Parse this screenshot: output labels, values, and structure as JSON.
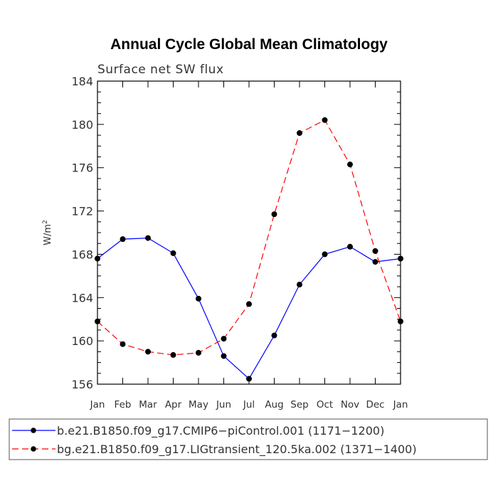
{
  "chart_data": {
    "type": "line",
    "title": "Annual Cycle Global Mean Climatology",
    "subtitle": "Surface net SW flux",
    "xlabel": "",
    "ylabel": "W/m",
    "ylabel_sup": "2",
    "categories": [
      "Jan",
      "Feb",
      "Mar",
      "Apr",
      "May",
      "Jun",
      "Jul",
      "Aug",
      "Sep",
      "Oct",
      "Nov",
      "Dec",
      "Jan"
    ],
    "ylim": [
      156,
      184
    ],
    "yticks": [
      156,
      160,
      164,
      168,
      172,
      176,
      180,
      184
    ],
    "grid": false,
    "legend_position": "bottom",
    "series": [
      {
        "name": "b.e21.B1850.f09_g17.CMIP6−piControl.001 (1171−1200)",
        "color": "#0000ff",
        "style": "solid",
        "values": [
          167.6,
          169.4,
          169.5,
          168.1,
          163.9,
          158.6,
          156.5,
          160.5,
          165.2,
          168.0,
          168.7,
          167.3,
          167.6
        ]
      },
      {
        "name": "bg.e21.B1850.f09_g17.LIGtransient_120.5ka.002 (1371−1400)",
        "color": "#ff0000",
        "style": "dashed",
        "values": [
          161.8,
          159.7,
          159.0,
          158.7,
          158.9,
          160.2,
          163.4,
          171.7,
          179.2,
          180.4,
          176.3,
          168.3,
          161.8
        ]
      }
    ]
  }
}
